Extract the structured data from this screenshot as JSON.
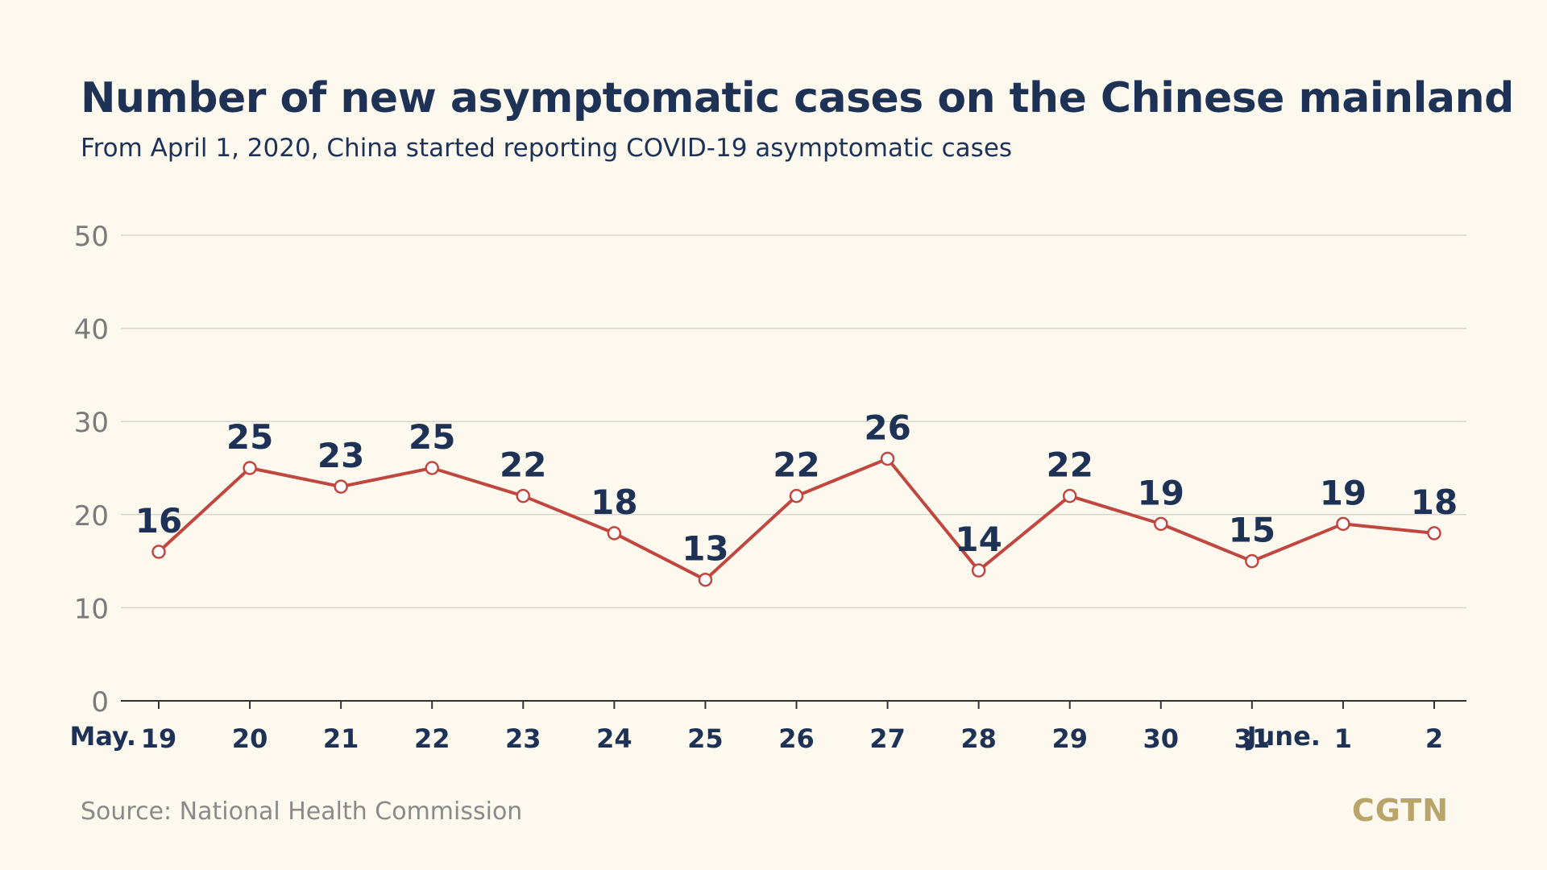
{
  "header": {
    "title": "Number of new asymptomatic cases on the Chinese mainland",
    "subtitle": "From April 1, 2020, China started reporting COVID-19 asymptomatic cases"
  },
  "footer": {
    "source": "Source: National Health Commission",
    "logo": "CGTN"
  },
  "colors": {
    "title": "#1e3256",
    "line": "#c0473f",
    "grid": "#d9d6cc",
    "tick": "#7a7a7a",
    "background": "#fdf9ef",
    "logo": "#b9a46a"
  },
  "chart_data": {
    "type": "line",
    "title": "Number of new asymptomatic cases on the Chinese mainland",
    "subtitle": "From April 1, 2020, China started reporting COVID-19 asymptomatic cases",
    "categories": [
      "19",
      "20",
      "21",
      "22",
      "23",
      "24",
      "25",
      "26",
      "27",
      "28",
      "29",
      "30",
      "31",
      "1",
      "2"
    ],
    "month_labels": [
      {
        "index": 0,
        "label": "May."
      },
      {
        "index": 13,
        "label": "June."
      }
    ],
    "values": [
      16,
      25,
      23,
      25,
      22,
      18,
      13,
      22,
      26,
      14,
      22,
      19,
      15,
      19,
      18
    ],
    "yticks": [
      0,
      10,
      20,
      30,
      40,
      50
    ],
    "ylim": [
      0,
      50
    ],
    "grid": true,
    "xlabel": "",
    "ylabel": ""
  }
}
